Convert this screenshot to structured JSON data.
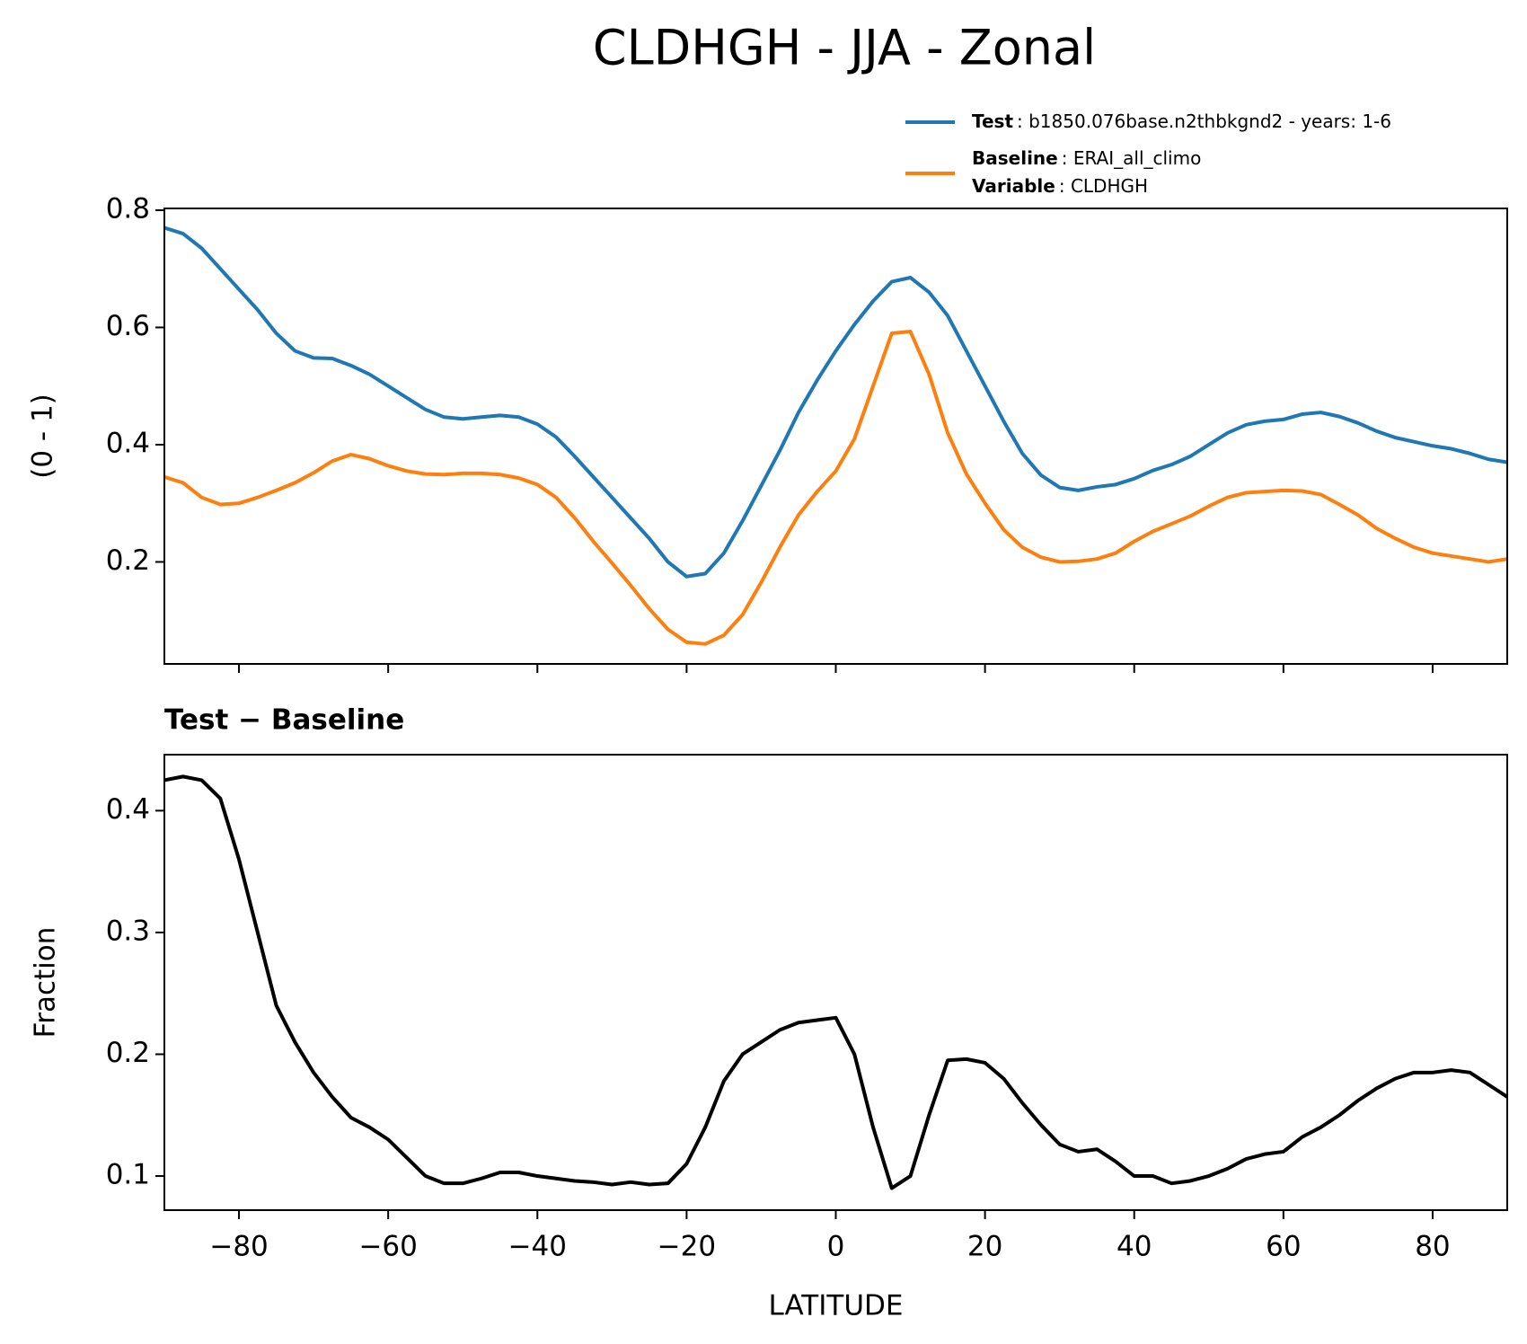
{
  "title": "CLDHGH - JJA - Zonal",
  "chart_data": [
    {
      "type": "line",
      "ylabel": "(0 - 1)",
      "x": [
        -90,
        -87.5,
        -85,
        -82.5,
        -80,
        -77.5,
        -75,
        -72.5,
        -70,
        -67.5,
        -65,
        -62.5,
        -60,
        -57.5,
        -55,
        -52.5,
        -50,
        -47.5,
        -45,
        -42.5,
        -40,
        -37.5,
        -35,
        -32.5,
        -30,
        -27.5,
        -25,
        -22.5,
        -20,
        -17.5,
        -15,
        -12.5,
        -10,
        -7.5,
        -5,
        -2.5,
        0,
        2.5,
        5,
        7.5,
        10,
        12.5,
        15,
        17.5,
        20,
        22.5,
        25,
        27.5,
        30,
        32.5,
        35,
        37.5,
        40,
        42.5,
        45,
        47.5,
        50,
        52.5,
        55,
        57.5,
        60,
        62.5,
        65,
        67.5,
        70,
        72.5,
        75,
        77.5,
        80,
        82.5,
        85,
        87.5,
        90
      ],
      "series": [
        {
          "name": "Test",
          "description": ": b1850.076base.n2thbkgnd2 - years: 1-6",
          "color": "#1f77b4",
          "values": [
            0.77,
            0.76,
            0.735,
            0.7,
            0.665,
            0.63,
            0.59,
            0.56,
            0.548,
            0.547,
            0.535,
            0.52,
            0.5,
            0.48,
            0.46,
            0.447,
            0.444,
            0.447,
            0.45,
            0.447,
            0.435,
            0.413,
            0.38,
            0.345,
            0.31,
            0.275,
            0.24,
            0.2,
            0.175,
            0.18,
            0.215,
            0.27,
            0.33,
            0.39,
            0.455,
            0.51,
            0.56,
            0.605,
            0.645,
            0.678,
            0.685,
            0.66,
            0.62,
            0.56,
            0.5,
            0.44,
            0.385,
            0.348,
            0.327,
            0.322,
            0.328,
            0.332,
            0.342,
            0.356,
            0.366,
            0.38,
            0.4,
            0.42,
            0.434,
            0.44,
            0.443,
            0.452,
            0.455,
            0.448,
            0.437,
            0.423,
            0.412,
            0.405,
            0.398,
            0.393,
            0.385,
            0.375,
            0.37
          ]
        },
        {
          "name": "Baseline",
          "description": ": ERAI_all_climo",
          "color": "#ff7f0e",
          "values": [
            0.345,
            0.335,
            0.31,
            0.298,
            0.3,
            0.31,
            0.322,
            0.335,
            0.352,
            0.372,
            0.383,
            0.376,
            0.364,
            0.355,
            0.35,
            0.349,
            0.351,
            0.351,
            0.349,
            0.343,
            0.332,
            0.31,
            0.275,
            0.235,
            0.198,
            0.16,
            0.12,
            0.085,
            0.063,
            0.06,
            0.075,
            0.11,
            0.165,
            0.225,
            0.28,
            0.32,
            0.355,
            0.41,
            0.5,
            0.59,
            0.593,
            0.52,
            0.42,
            0.35,
            0.3,
            0.255,
            0.225,
            0.208,
            0.2,
            0.201,
            0.205,
            0.215,
            0.235,
            0.252,
            0.265,
            0.278,
            0.295,
            0.31,
            0.318,
            0.32,
            0.322,
            0.321,
            0.315,
            0.298,
            0.28,
            0.257,
            0.24,
            0.225,
            0.215,
            0.21,
            0.205,
            0.2,
            0.205
          ]
        }
      ],
      "legend_extra": {
        "name": "Variable",
        "description": ": CLDHGH"
      },
      "xlim": [
        -90,
        90
      ],
      "xticks": [
        -80,
        -60,
        -40,
        -20,
        0,
        20,
        40,
        60,
        80
      ],
      "ylim": [
        0.026,
        0.803
      ],
      "yticks": [
        0.2,
        0.4,
        0.6,
        0.8
      ]
    },
    {
      "type": "line",
      "title": "Test − Baseline",
      "xlabel": "LATITUDE",
      "ylabel": "Fraction",
      "x": [
        -90,
        -87.5,
        -85,
        -82.5,
        -80,
        -77.5,
        -75,
        -72.5,
        -70,
        -67.5,
        -65,
        -62.5,
        -60,
        -57.5,
        -55,
        -52.5,
        -50,
        -47.5,
        -45,
        -42.5,
        -40,
        -37.5,
        -35,
        -32.5,
        -30,
        -27.5,
        -25,
        -22.5,
        -20,
        -17.5,
        -15,
        -12.5,
        -10,
        -7.5,
        -5,
        -2.5,
        0,
        2.5,
        5,
        7.5,
        10,
        12.5,
        15,
        17.5,
        20,
        22.5,
        25,
        27.5,
        30,
        32.5,
        35,
        37.5,
        40,
        42.5,
        45,
        47.5,
        50,
        52.5,
        55,
        57.5,
        60,
        62.5,
        65,
        67.5,
        70,
        72.5,
        75,
        77.5,
        80,
        82.5,
        85,
        87.5,
        90
      ],
      "series": [
        {
          "color": "#000000",
          "values": [
            0.425,
            0.428,
            0.425,
            0.41,
            0.36,
            0.3,
            0.24,
            0.21,
            0.185,
            0.165,
            0.148,
            0.14,
            0.13,
            0.115,
            0.1,
            0.094,
            0.094,
            0.098,
            0.103,
            0.103,
            0.1,
            0.098,
            0.096,
            0.095,
            0.093,
            0.095,
            0.093,
            0.094,
            0.11,
            0.14,
            0.178,
            0.2,
            0.21,
            0.22,
            0.226,
            0.228,
            0.23,
            0.2,
            0.14,
            0.09,
            0.1,
            0.15,
            0.195,
            0.196,
            0.193,
            0.18,
            0.16,
            0.142,
            0.126,
            0.12,
            0.122,
            0.112,
            0.1,
            0.1,
            0.094,
            0.096,
            0.1,
            0.106,
            0.114,
            0.118,
            0.12,
            0.132,
            0.14,
            0.15,
            0.162,
            0.172,
            0.18,
            0.185,
            0.185,
            0.187,
            0.185,
            0.175,
            0.165
          ]
        }
      ],
      "xlim": [
        -90,
        90
      ],
      "xticks": [
        {
          "value": -80,
          "label": "−80"
        },
        {
          "value": -60,
          "label": "−60"
        },
        {
          "value": -40,
          "label": "−40"
        },
        {
          "value": -20,
          "label": "−20"
        },
        0,
        20,
        40,
        60,
        80
      ],
      "ylim": [
        0.072,
        0.446
      ],
      "yticks": [
        0.1,
        0.2,
        0.3,
        0.4
      ]
    }
  ]
}
